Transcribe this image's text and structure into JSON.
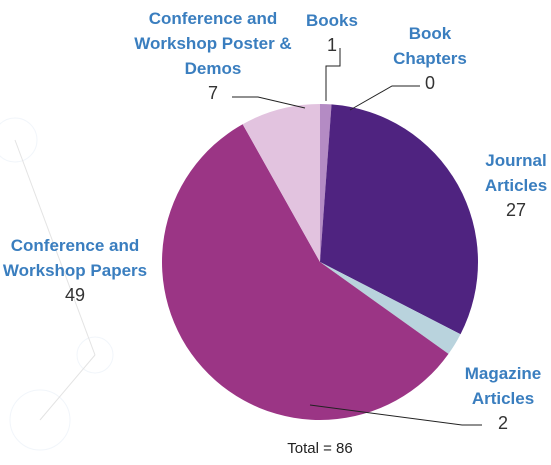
{
  "chart_data": {
    "type": "pie",
    "categories": [
      "Books",
      "Book Chapters",
      "Journal Articles",
      "Magazine Articles",
      "Conference and Workshop Papers",
      "Conference and Workshop Poster & Demos"
    ],
    "values": [
      1,
      0,
      27,
      2,
      49,
      7
    ],
    "colors": [
      "#b48bc4",
      "#7a4a9e",
      "#4f2380",
      "#b9d3dd",
      "#9b3585",
      "#e2c3df"
    ],
    "total_label": "Total = 86"
  }
}
